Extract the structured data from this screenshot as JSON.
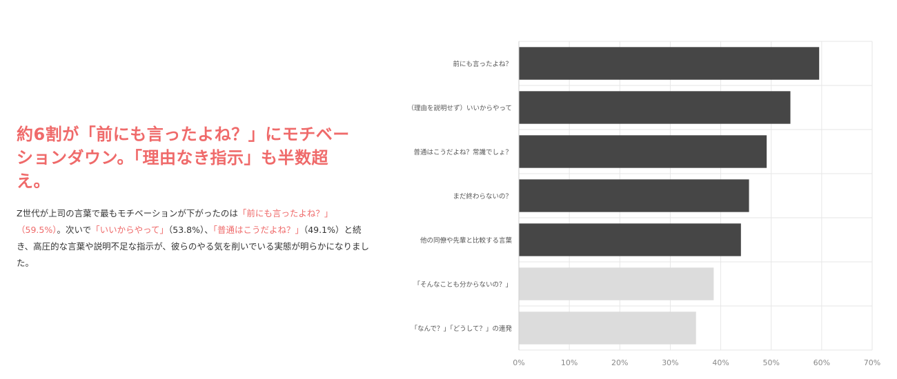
{
  "headline": {
    "line1": "約6割が「前にも言ったよね？」にモチベー",
    "line2": "ションダウン。「理由なき指示」も半数超",
    "line3": "え。"
  },
  "description": {
    "p1": "Z世代が上司の言葉で最もモチベーションが下がったのは",
    "h1": "「前にも言ったよね？」（59.5%）",
    "p2": "。次いで",
    "h2": "「いいからやって」",
    "p3": "（53.8%）、",
    "h3": "「普通はこうだよね？」",
    "p4": "（49.1%）と続き、高圧的な言葉や説明不足な指示が、彼らのやる気を削いでいる実態が明らかになりました。"
  },
  "chart_data": {
    "type": "bar",
    "orientation": "horizontal",
    "categories": [
      "前にも言ったよね？",
      "（理由を説明せず）いいからやって",
      "普通はこうだよね？常識でしょ？",
      "まだ終わらないの？",
      "他の同僚や先輩と比較する言葉",
      "「そんなことも分からないの？」",
      "「なんで？」「どうして？」の連発"
    ],
    "values": [
      59.5,
      53.8,
      49.1,
      45.6,
      44.0,
      38.6,
      35.1
    ],
    "xlim": [
      0,
      70
    ],
    "xticks": [
      "0%",
      "10%",
      "20%",
      "30%",
      "40%",
      "50%",
      "60%",
      "70%"
    ],
    "grid": true,
    "colors": {
      "highlight": "#464646",
      "muted": "#dcdcdc"
    },
    "highlighted_count": 5
  },
  "colors": {
    "accent": "#ef6a6a",
    "text": "#333333",
    "axis_text": "#888888",
    "gridline": "#e6e6e6"
  }
}
